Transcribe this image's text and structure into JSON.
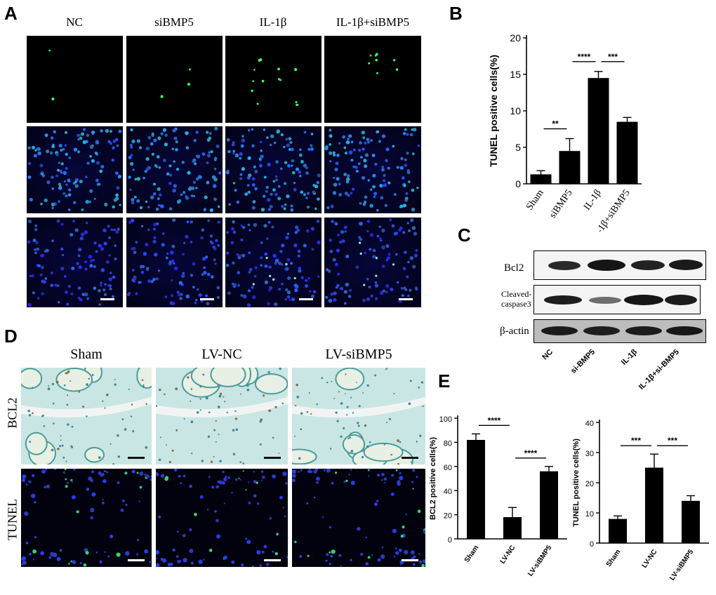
{
  "panels": {
    "A": "A",
    "B": "B",
    "C": "C",
    "D": "D",
    "E": "E"
  },
  "panel_a": {
    "columns": [
      "NC",
      "siBMP5",
      "IL-1β",
      "IL-1β+siBMP5"
    ]
  },
  "panel_c": {
    "rows": [
      "Bcl2",
      "Cleaved-",
      "caspase3",
      "β-actin"
    ],
    "lanes": [
      "NC",
      "si-BMP5",
      "IL-1β",
      "IL-1β+si-BMP5"
    ]
  },
  "panel_d": {
    "columns": [
      "Sham",
      "LV-NC",
      "LV-siBMP5"
    ],
    "rows": [
      "BCL2",
      "TUNEL"
    ]
  },
  "chart_data": [
    {
      "id": "B",
      "type": "bar",
      "categories": [
        "Sham",
        "siBMP5",
        "IL-1β",
        "IL-1β+siBMP5"
      ],
      "values": [
        1.3,
        4.5,
        14.5,
        8.5
      ],
      "errors": [
        0.5,
        1.7,
        0.9,
        0.6
      ],
      "ylabel": "TUNEL positive cells(%)",
      "ylim": [
        0,
        20
      ],
      "yticks": [
        0,
        5,
        10,
        15,
        20
      ],
      "significance": [
        {
          "from": 0,
          "to": 1,
          "label": "**"
        },
        {
          "from": 1,
          "to": 2,
          "label": "****"
        },
        {
          "from": 2,
          "to": 3,
          "label": "***"
        }
      ]
    },
    {
      "id": "E1",
      "type": "bar",
      "categories": [
        "Sham",
        "LV-NC",
        "LV-siBMP5"
      ],
      "values": [
        82,
        18,
        56
      ],
      "errors": [
        5,
        8,
        4
      ],
      "ylabel": "BCL2 positive cells(%)",
      "ylim": [
        0,
        100
      ],
      "yticks": [
        0,
        20,
        40,
        60,
        80,
        100
      ],
      "significance": [
        {
          "from": 0,
          "to": 1,
          "label": "****"
        },
        {
          "from": 1,
          "to": 2,
          "label": "****"
        }
      ]
    },
    {
      "id": "E2",
      "type": "bar",
      "categories": [
        "Sham",
        "LV-NC",
        "LV-siBMP5"
      ],
      "values": [
        8,
        25,
        14
      ],
      "errors": [
        1,
        4.5,
        1.7
      ],
      "ylabel": "TUNEL positive cells(%)",
      "ylim": [
        0,
        40
      ],
      "yticks": [
        0,
        10,
        20,
        30,
        40
      ],
      "significance": [
        {
          "from": 0,
          "to": 1,
          "label": "***"
        },
        {
          "from": 1,
          "to": 2,
          "label": "***"
        }
      ]
    }
  ]
}
